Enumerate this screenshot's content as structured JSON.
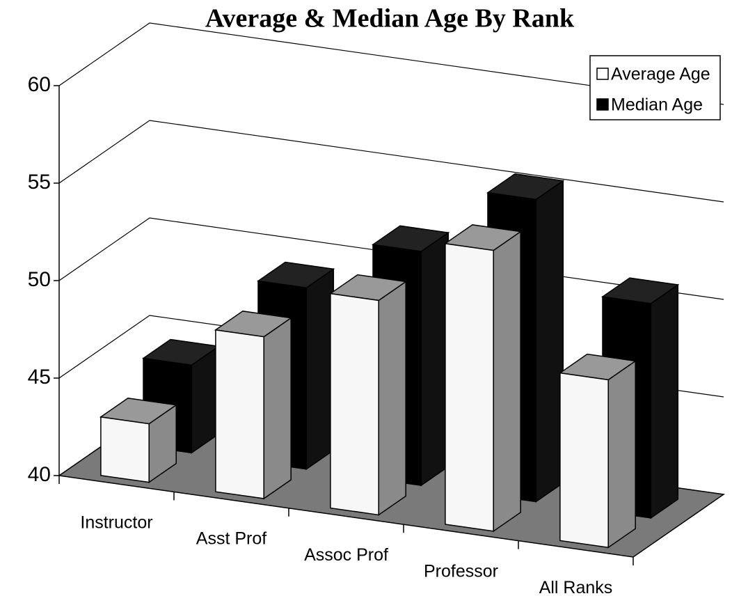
{
  "chart_data": {
    "type": "bar3d",
    "title": "Average & Median Age By Rank",
    "categories": [
      "Instructor",
      "Asst Prof",
      "Assoc Prof",
      "Professor",
      "All Ranks"
    ],
    "series": [
      {
        "name": "Average Age",
        "color": "#ffffff",
        "values": [
          43,
          48.3,
          51,
          54.4,
          48.6
        ]
      },
      {
        "name": "Median Age",
        "color": "#000000",
        "values": [
          44.5,
          49.3,
          52,
          55.5,
          51
        ]
      }
    ],
    "ylim": [
      40,
      60
    ],
    "yticks": [
      40,
      45,
      50,
      55,
      60
    ],
    "grid": true,
    "legend": "top-right"
  }
}
